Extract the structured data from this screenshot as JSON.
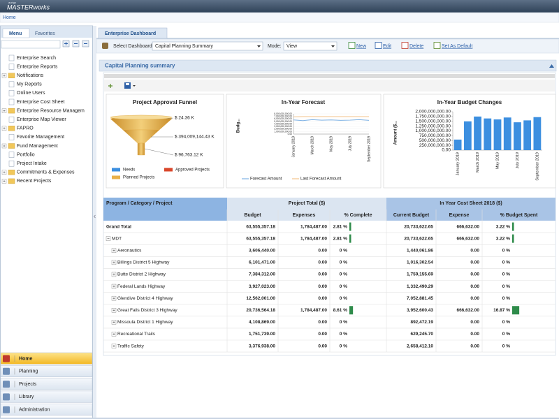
{
  "header": {
    "brand_small": "aurigo",
    "brand": "MASTERworks",
    "breadcrumb": "Home"
  },
  "sidebar": {
    "tabs": [
      "Menu",
      "Favorites"
    ],
    "tree": [
      "Enterprise Search",
      "Enterprise Reports",
      "Notifications",
      "My Reports",
      "Online Users",
      "Enterprise Cost Sheet",
      "Enterprise Resource Managem",
      "Enterprise Map Viewer",
      "FAPRO",
      "Favorite Management",
      "Fund Management",
      "Portfolio",
      "Project Intake",
      "Commitments & Expenses",
      "Recent Projects"
    ],
    "nav": [
      "Home",
      "Planning",
      "Projects",
      "Library",
      "Administration"
    ]
  },
  "main": {
    "tab": "Enterprise Dashboard",
    "toolbar": {
      "select_label": "Select Dashboard",
      "select_value": "Capital Planning Summary",
      "mode_label": "Mode:",
      "mode_value": "View",
      "actions": [
        "New",
        "Edit",
        "Delete",
        "Set As Default"
      ]
    },
    "panel_title": "Capital Planning summary"
  },
  "chart_data": [
    {
      "type": "funnel",
      "title": "Project Approval Funnel",
      "categories": [
        "Needs",
        "Approved Projects",
        "Planned Projects"
      ],
      "colors": [
        "#3c8fe0",
        "#d9472b",
        "#e8b04a"
      ],
      "color": "#e2ac48",
      "values": [
        24.36,
        394009144.43,
        96763.12
      ],
      "value_labels": [
        "$ 24.36 K",
        "$ 394,009,144.43 K",
        "$ 96,763.12 K"
      ]
    },
    {
      "type": "line",
      "title": "In-Year Forecast",
      "y_label": "Budg...",
      "categories": [
        "January 2019",
        null,
        "March 2019",
        null,
        "May 2019",
        null,
        "July 2019",
        null,
        "September 2019"
      ],
      "series": [
        {
          "name": "Forecast Amount",
          "color": "#7fb2e5",
          "values": [
            5600000000,
            5300000000,
            5700000000,
            5500000000,
            5600000000,
            5400000000,
            5500000000,
            5700000000,
            5400000000
          ]
        },
        {
          "name": "Last Forecast Amount",
          "color": "#f3c48a",
          "values": [
            6800000000,
            6900000000,
            6900000000,
            6900000000,
            6900000000,
            6900000000,
            6900000000,
            6900000000,
            6900000000
          ]
        }
      ],
      "ylim": [
        0,
        8000000000
      ],
      "yticks": [
        {
          "value": 0,
          "label": "0.00"
        },
        {
          "value": 1000000000,
          "label": "1,000,000,000.00"
        },
        {
          "value": 2000000000,
          "label": "2,000,000,000.00"
        },
        {
          "value": 3000000000,
          "label": "3,000,000,000.00"
        },
        {
          "value": 4000000000,
          "label": "4,000,000,000.00"
        },
        {
          "value": 5000000000,
          "label": "5,000,000,000.00"
        },
        {
          "value": 6000000000,
          "label": "6,000,000,000.00"
        },
        {
          "value": 7000000000,
          "label": "7,000,000,000.00"
        },
        {
          "value": 8000000000,
          "label": "8,000,000,000.00"
        }
      ]
    },
    {
      "type": "bar",
      "title": "In-Year Budget Changes",
      "y_label": "Amount ($...",
      "color": "#3c8fe0",
      "categories": [
        "January 2019",
        null,
        "March 2019",
        null,
        "May 2019",
        null,
        "July 2019",
        null,
        "September 2019"
      ],
      "values": [
        550000000,
        1500000000,
        1750000000,
        1650000000,
        1600000000,
        1700000000,
        1450000000,
        1550000000,
        1720000000
      ],
      "ylim": [
        0,
        2000000000
      ],
      "yticks": [
        {
          "value": 0,
          "label": "0.00"
        },
        {
          "value": 250000000,
          "label": "250,000,000.00"
        },
        {
          "value": 500000000,
          "label": "500,000,000.00"
        },
        {
          "value": 750000000,
          "label": "750,000,000.00"
        },
        {
          "value": 1000000000,
          "label": "1,000,000,000.00"
        },
        {
          "value": 1250000000,
          "label": "1,250,000,000.00"
        },
        {
          "value": 1500000000,
          "label": "1,500,000,000.00"
        },
        {
          "value": 1750000000,
          "label": "1,750,000,000.00"
        },
        {
          "value": 2000000000,
          "label": "2,000,000,000.00"
        }
      ]
    }
  ],
  "table": {
    "group_headers": [
      "Program / Category / Project",
      "Project Total  ($)",
      "In Year Cost Sheet 2018 ($)"
    ],
    "columns": [
      "Budget",
      "Expenses",
      "% Complete",
      "Current Budget",
      "Expense",
      "% Budget Spent"
    ],
    "rows": [
      [
        "Grand Total",
        "63,555,357.18",
        "1,784,487.00",
        "2.81 %",
        "20,733,622.65",
        "666,632.00",
        "3.22 %"
      ],
      [
        "MDT",
        "63,555,357.18",
        "1,784,487.00",
        "2.81 %",
        "20,733,622.65",
        "666,632.00",
        "3.22 %"
      ],
      [
        "Aeronautics",
        "3,606,440.00",
        "0.00",
        "0 %",
        "1,440,061.86",
        "0.00",
        "0 %"
      ],
      [
        "Billings District 5 Highway",
        "6,101,471.00",
        "0.00",
        "0 %",
        "1,016,302.54",
        "0.00",
        "0 %"
      ],
      [
        "Butte District 2 Highway",
        "7,384,312.00",
        "0.00",
        "0 %",
        "1,759,155.69",
        "0.00",
        "0 %"
      ],
      [
        "Federal Lands Highway",
        "3,927,023.00",
        "0.00",
        "0 %",
        "1,332,490.29",
        "0.00",
        "0 %"
      ],
      [
        "Glendive District 4 Highway",
        "12,562,001.00",
        "0.00",
        "0 %",
        "7,052,881.45",
        "0.00",
        "0 %"
      ],
      [
        "Great Falls District 3 Highway",
        "20,736,564.18",
        "1,784,487.00",
        "8.61 %",
        "3,952,600.43",
        "666,632.00",
        "16.87 %"
      ],
      [
        "Missoula District 1 Highway",
        "4,108,869.00",
        "0.00",
        "0 %",
        "892,472.19",
        "0.00",
        "0 %"
      ],
      [
        "Recreational Trails",
        "1,751,739.00",
        "0.00",
        "0 %",
        "629,245.70",
        "0.00",
        "0 %"
      ],
      [
        "Traffic Safety",
        "3,376,938.00",
        "0.00",
        "0 %",
        "2,658,412.10",
        "0.00",
        "0 %"
      ]
    ]
  }
}
